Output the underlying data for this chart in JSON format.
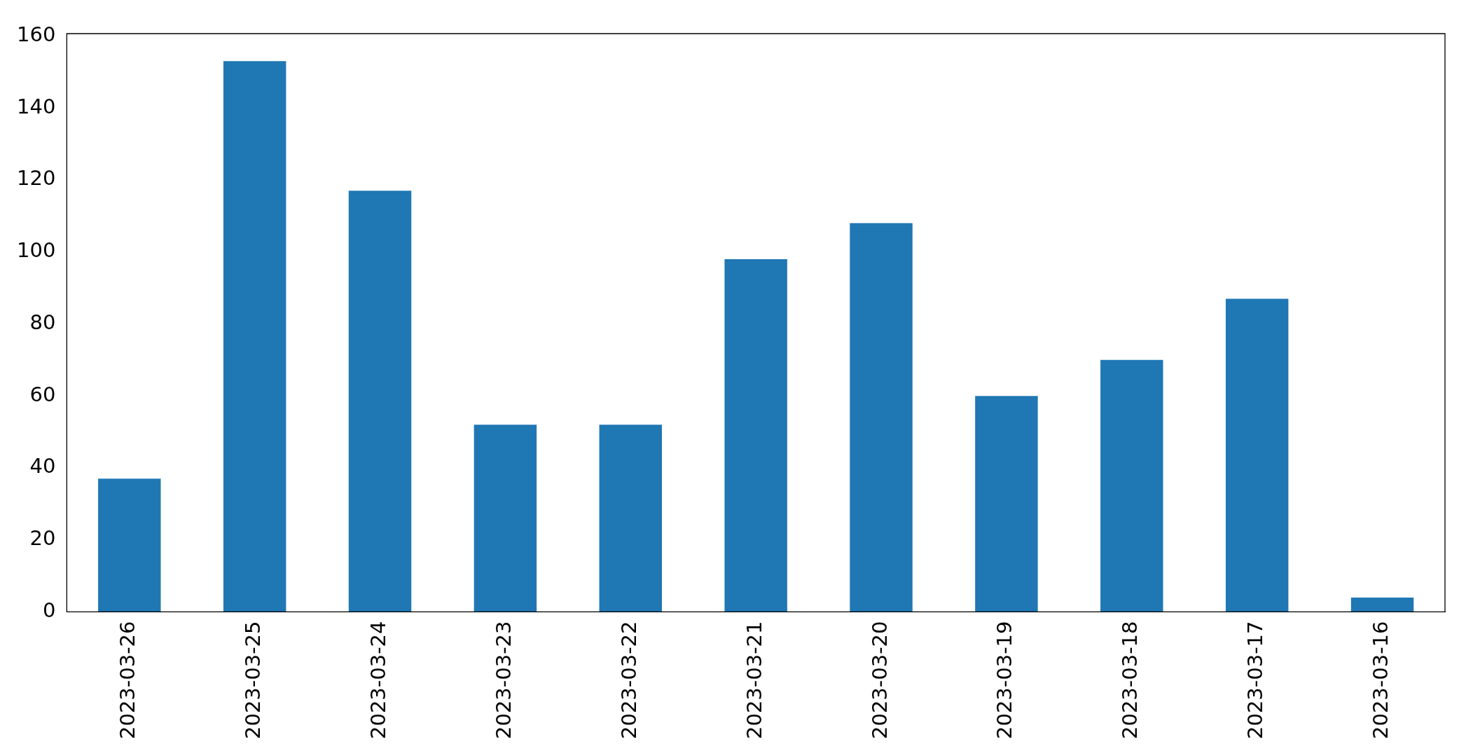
{
  "chart_data": {
    "type": "bar",
    "categories": [
      "2023-03-26",
      "2023-03-25",
      "2023-03-24",
      "2023-03-23",
      "2023-03-22",
      "2023-03-21",
      "2023-03-20",
      "2023-03-19",
      "2023-03-18",
      "2023-03-17",
      "2023-03-16"
    ],
    "values": [
      37,
      153,
      117,
      52,
      52,
      98,
      108,
      60,
      70,
      87,
      4
    ],
    "color": "#1f77b4",
    "ylim": [
      0,
      160.65
    ],
    "yticks": [
      0,
      20,
      40,
      60,
      80,
      100,
      120,
      140,
      160
    ],
    "grid": false,
    "legend": false
  }
}
